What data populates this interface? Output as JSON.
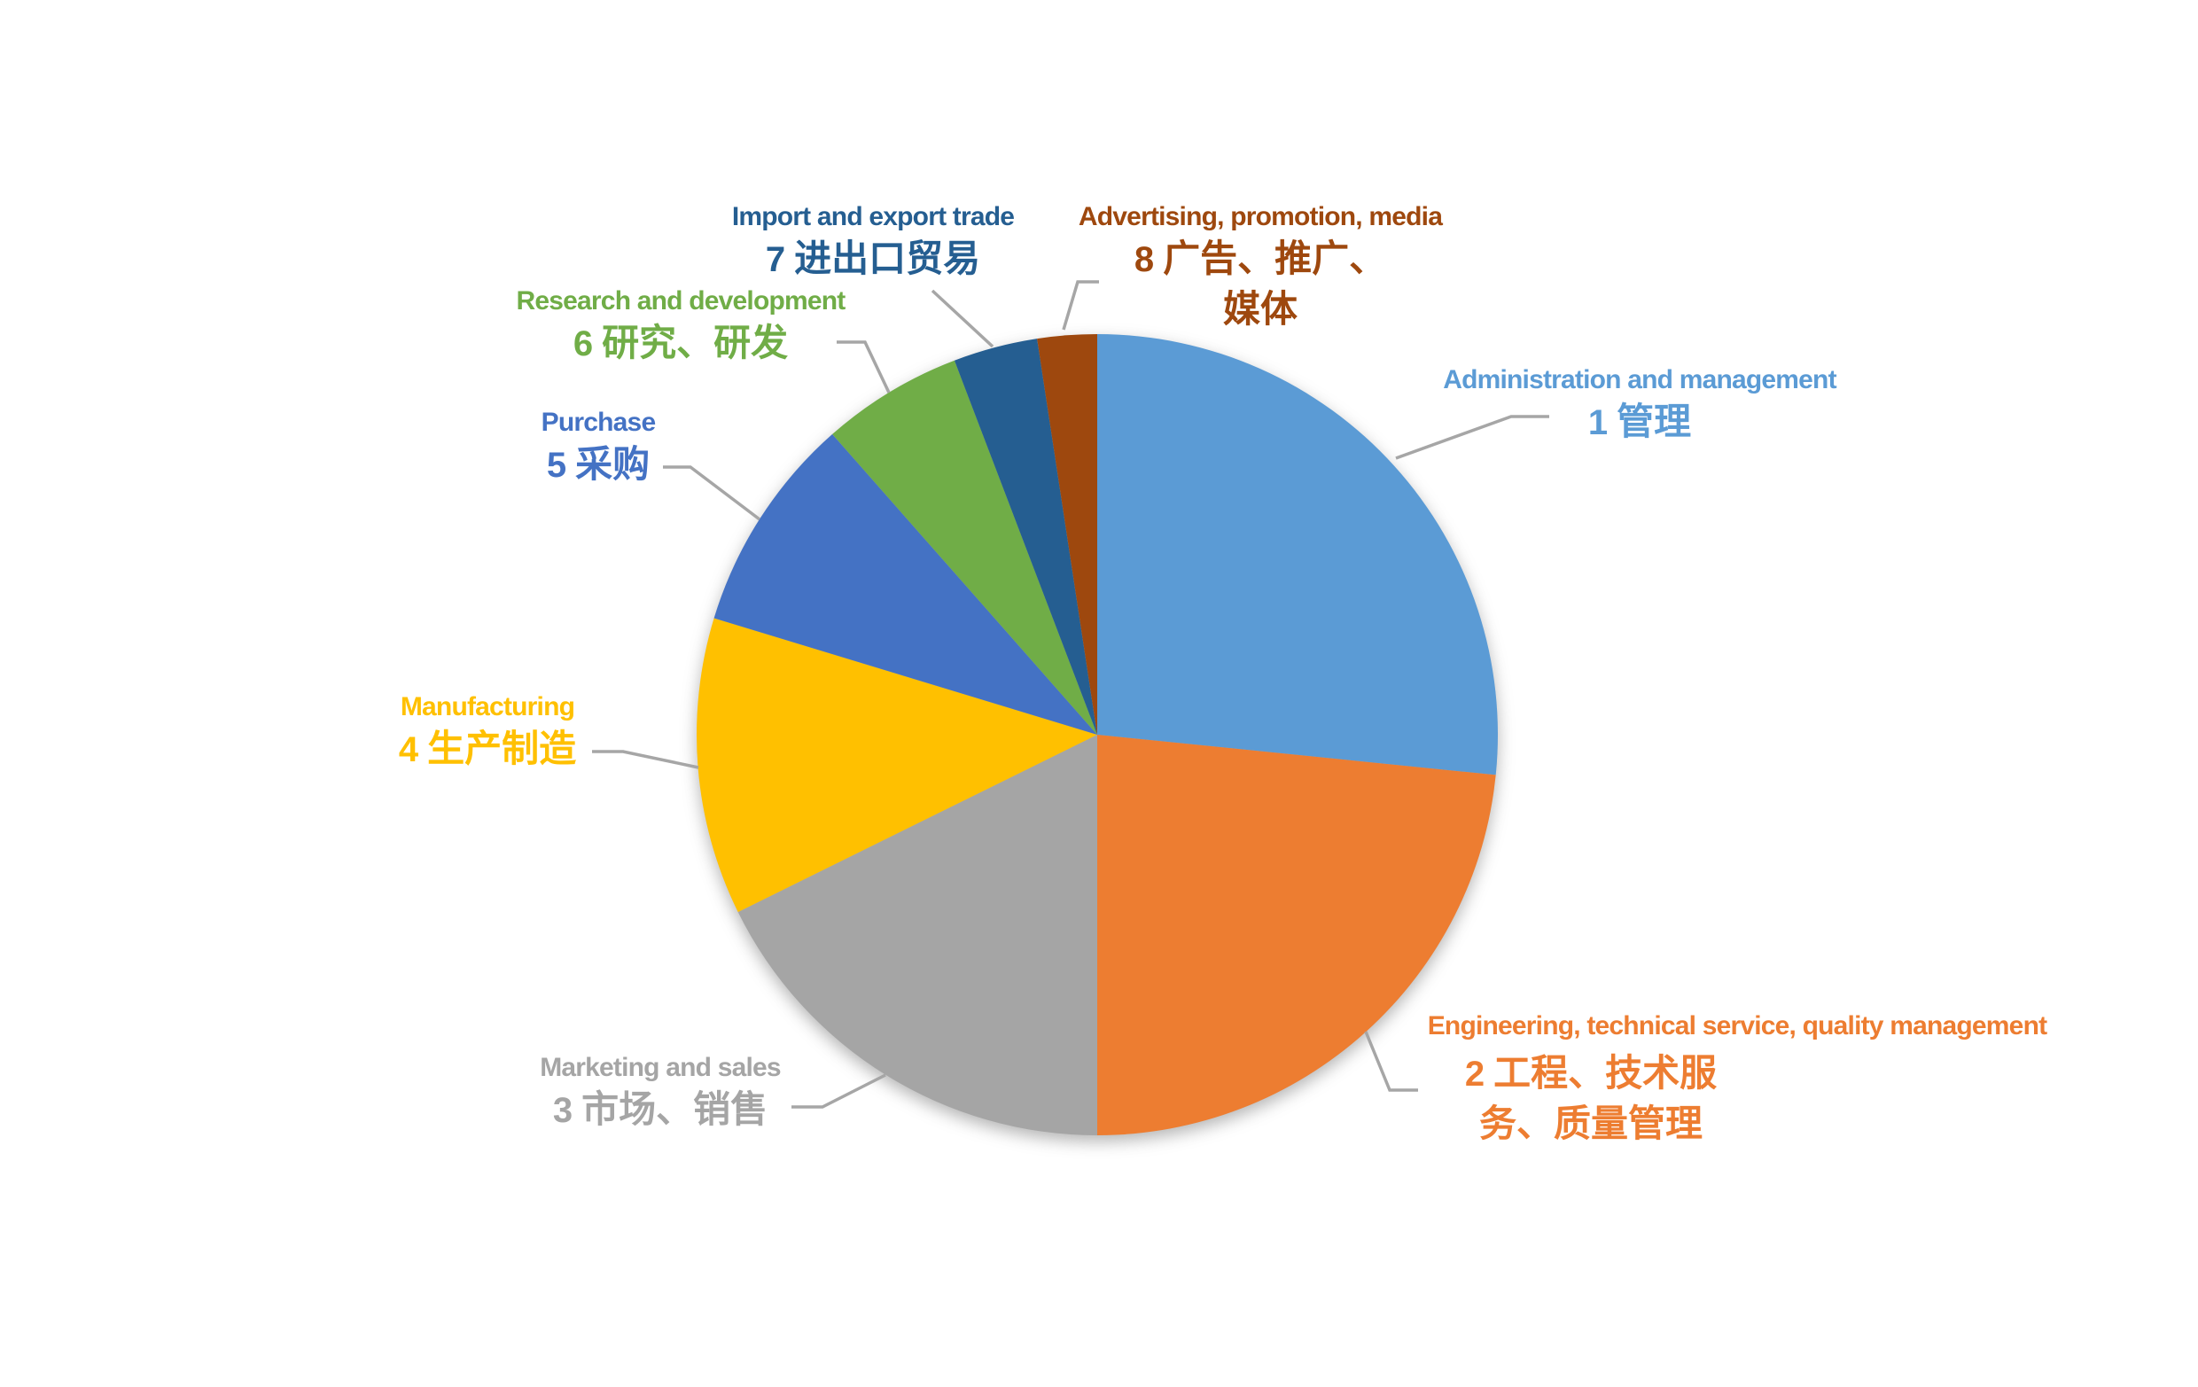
{
  "chart_data": {
    "type": "pie",
    "title": "",
    "legend": "none",
    "start_angle_deg": 0,
    "direction": "clockwise",
    "values_estimated_from_angles": true,
    "background_color": "#FFFFFF",
    "leader_line_color": "#A6A6A6",
    "slices": [
      {
        "key": "administration",
        "number": "1",
        "label_en": "Administration and management",
        "label_zh": "管理",
        "percent": 26.6,
        "color": "#5B9BD5"
      },
      {
        "key": "engineering",
        "number": "2",
        "label_en": "Engineering, technical service, quality management",
        "label_zh": "工程、技术服务、质量管理",
        "percent": 23.4,
        "color": "#ED7D31"
      },
      {
        "key": "marketing",
        "number": "3",
        "label_en": "Marketing and sales",
        "label_zh": "市场、销售",
        "percent": 17.7,
        "color": "#A5A5A5"
      },
      {
        "key": "manufacturing",
        "number": "4",
        "label_en": "Manufacturing",
        "label_zh": "生产制造",
        "percent": 12.0,
        "color": "#FFC000"
      },
      {
        "key": "purchase",
        "number": "5",
        "label_en": "Purchase",
        "label_zh": "采购",
        "percent": 8.8,
        "color": "#4472C4"
      },
      {
        "key": "research",
        "number": "6",
        "label_en": "Research and development",
        "label_zh": "研究、研发",
        "percent": 5.7,
        "color": "#70AD47"
      },
      {
        "key": "import",
        "number": "7",
        "label_en": "Import and export trade",
        "label_zh": "进出口贸易",
        "percent": 3.4,
        "color": "#255E91"
      },
      {
        "key": "advertising",
        "number": "8",
        "label_en": "Advertising, promotion, media",
        "label_zh": "广告、推广、媒体",
        "percent": 2.4,
        "color": "#9E480E"
      }
    ]
  }
}
